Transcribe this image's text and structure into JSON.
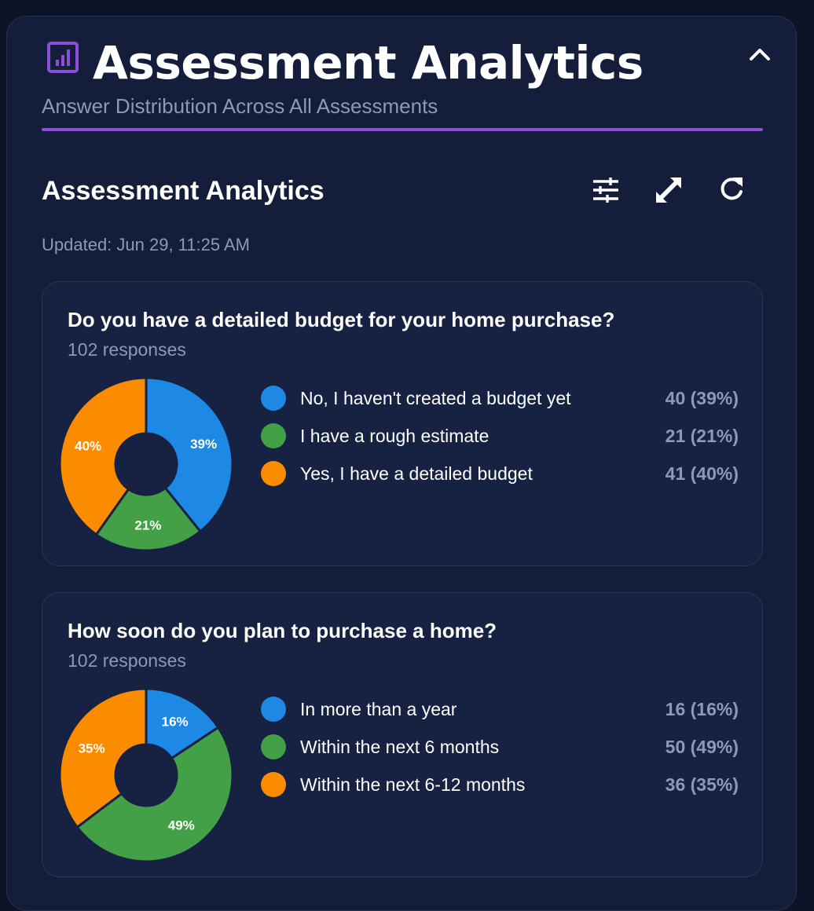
{
  "header": {
    "title": "Assessment Analytics",
    "subtitle": "Answer Distribution Across All Assessments",
    "icon": "bar-chart-icon",
    "accent_color": "#8a4fd6"
  },
  "section": {
    "title": "Assessment Analytics",
    "updated": "Updated: Jun 29, 11:25 AM",
    "tools": [
      "filter-sliders-icon",
      "expand-icon",
      "refresh-icon"
    ]
  },
  "colors": {
    "blue": "#1e88e5",
    "green": "#43a047",
    "orange": "#fb8c00"
  },
  "questions": [
    {
      "title": "Do you have a detailed budget for your home purchase?",
      "responses": "102 responses",
      "answers": [
        {
          "label": "No, I haven't created a budget yet",
          "value": "40 (39%)",
          "pct_label": "39%",
          "count": 40,
          "color": "#1e88e5"
        },
        {
          "label": "I have a rough estimate",
          "value": "21 (21%)",
          "pct_label": "21%",
          "count": 21,
          "color": "#43a047"
        },
        {
          "label": "Yes, I have a detailed budget",
          "value": "41 (40%)",
          "pct_label": "40%",
          "count": 41,
          "color": "#fb8c00"
        }
      ]
    },
    {
      "title": "How soon do you plan to purchase a home?",
      "responses": "102 responses",
      "answers": [
        {
          "label": "In more than a year",
          "value": "16 (16%)",
          "pct_label": "16%",
          "count": 16,
          "color": "#1e88e5"
        },
        {
          "label": "Within the next 6 months",
          "value": "50 (49%)",
          "pct_label": "49%",
          "count": 50,
          "color": "#43a047"
        },
        {
          "label": "Within the next 6-12 months",
          "value": "36 (35%)",
          "pct_label": "35%",
          "count": 36,
          "color": "#fb8c00"
        }
      ]
    }
  ],
  "chart_data": [
    {
      "type": "pie",
      "categories": [
        "No, I haven't created a budget yet",
        "I have a rough estimate",
        "Yes, I have a detailed budget"
      ],
      "values": [
        40,
        21,
        41
      ],
      "title": "Do you have a detailed budget for your home purchase?"
    },
    {
      "type": "pie",
      "categories": [
        "In more than a year",
        "Within the next 6 months",
        "Within the next 6-12 months"
      ],
      "values": [
        16,
        50,
        36
      ],
      "title": "How soon do you plan to purchase a home?"
    }
  ]
}
